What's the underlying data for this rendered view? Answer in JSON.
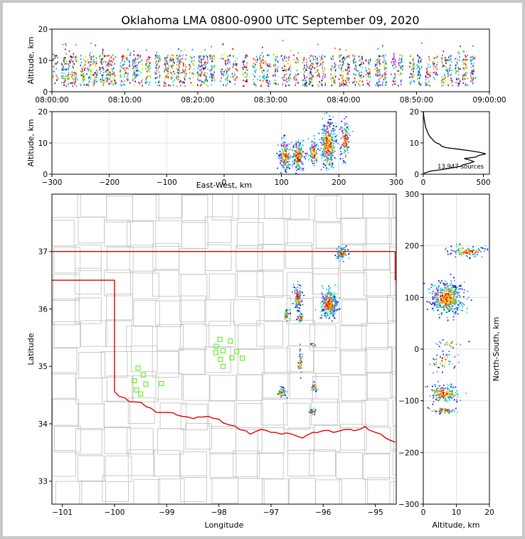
{
  "chart_data": [
    {
      "id": "altitude-vs-time",
      "type": "scatter",
      "title": "Oklahoma LMA 0800-0900 UTC September 09, 2020",
      "ylabel": "Altitude, km",
      "xlim": [
        "08:00:00",
        "09:00:00"
      ],
      "ylim": [
        0,
        20
      ],
      "xticks": [
        "08:00:00",
        "08:10:00",
        "08:20:00",
        "08:30:00",
        "08:40:00",
        "08:50:00",
        "09:00:00"
      ],
      "yticks": [
        "0",
        "10",
        "20"
      ],
      "column_minutes": [
        0.4,
        1.6,
        2.4,
        3.1,
        4.2,
        5.0,
        5.9,
        6.8,
        7.6,
        8.4,
        9.6,
        10.4,
        11.3,
        12.0,
        13.1,
        14.4,
        15.6,
        16.4,
        17.3,
        18.0,
        19.1,
        20.2,
        21.0,
        21.9,
        23.4,
        24.1,
        25.0,
        26.4,
        27.8,
        28.7,
        29.5,
        30.6,
        31.7,
        32.4,
        33.4,
        34.6,
        35.5,
        36.3,
        37.1,
        38.5,
        39.6,
        40.4,
        41.5,
        42.3,
        43.3,
        44.6,
        45.5,
        46.8,
        47.7,
        49.3,
        50.3,
        51.5,
        52.5,
        53.7,
        54.5,
        55.6,
        56.6,
        57.7
      ],
      "altitude_band_km": [
        2,
        12
      ]
    },
    {
      "id": "altitude-vs-east-west",
      "type": "scatter",
      "xlabel": "East-West, km",
      "ylabel": "Altitude, km",
      "xlim": [
        -300,
        300
      ],
      "ylim": [
        0,
        20
      ],
      "xticks": [
        "−300",
        "−200",
        "−100",
        "0",
        "100",
        "200",
        "300"
      ],
      "yticks": [
        "0",
        "10",
        "20"
      ],
      "clusters": [
        {
          "x": 105,
          "alt": 6,
          "sx": 5,
          "sa": 2.5,
          "n": 160
        },
        {
          "x": 128,
          "alt": 6,
          "sx": 5,
          "sa": 2.5,
          "n": 170
        },
        {
          "x": 155,
          "alt": 7,
          "sx": 4,
          "sa": 2,
          "n": 90
        },
        {
          "x": 180,
          "alt": 10,
          "sx": 7,
          "sa": 4,
          "n": 330
        },
        {
          "x": 210,
          "alt": 11,
          "sx": 4,
          "sa": 3,
          "n": 110
        }
      ]
    },
    {
      "id": "source-count-histogram",
      "type": "line",
      "xlim": [
        0,
        550
      ],
      "ylim": [
        0,
        20
      ],
      "xticks": [
        "0",
        "500"
      ],
      "yticks": [
        "0",
        "10",
        "20"
      ],
      "annotation": "13,947 sources",
      "altitude_km": [
        0.3,
        1,
        1.5,
        2,
        2.5,
        3,
        3.5,
        4,
        4.5,
        5,
        5.5,
        6,
        6.5,
        7,
        7.5,
        8,
        8.5,
        9,
        9.5,
        10,
        10.5,
        11,
        12,
        13,
        14,
        15,
        16,
        17,
        18,
        19,
        20
      ],
      "count": [
        5,
        60,
        160,
        230,
        310,
        330,
        380,
        420,
        390,
        340,
        440,
        460,
        520,
        470,
        390,
        290,
        190,
        150,
        140,
        110,
        90,
        80,
        55,
        40,
        30,
        20,
        15,
        10,
        6,
        3,
        1
      ]
    },
    {
      "id": "plan-view-map",
      "type": "scatter",
      "xlabel": "Longitude",
      "ylabel": "Latitude",
      "xlim": [
        -101.2,
        -94.6
      ],
      "ylim": [
        32.6,
        38.0
      ],
      "xticks": [
        "−101",
        "−100",
        "−99",
        "−98",
        "−97",
        "−96",
        "−95"
      ],
      "yticks": [
        "33",
        "34",
        "35",
        "36",
        "37"
      ],
      "clusters": [
        {
          "lon": -95.9,
          "lat": 36.1,
          "slon": 0.08,
          "slat": 0.12,
          "n": 320
        },
        {
          "lon": -96.5,
          "lat": 36.2,
          "slon": 0.04,
          "slat": 0.12,
          "n": 120
        },
        {
          "lon": -96.7,
          "lat": 35.9,
          "slon": 0.03,
          "slat": 0.05,
          "n": 40
        },
        {
          "lon": -96.45,
          "lat": 35.85,
          "slon": 0.03,
          "slat": 0.04,
          "n": 30
        },
        {
          "lon": -95.65,
          "lat": 36.98,
          "slon": 0.05,
          "slat": 0.05,
          "n": 90
        },
        {
          "lon": -96.45,
          "lat": 35.1,
          "slon": 0.02,
          "slat": 0.1,
          "n": 40
        },
        {
          "lon": -96.8,
          "lat": 34.55,
          "slon": 0.04,
          "slat": 0.05,
          "n": 60
        },
        {
          "lon": -96.18,
          "lat": 34.65,
          "slon": 0.03,
          "slat": 0.04,
          "n": 30
        },
        {
          "lon": -96.2,
          "lat": 34.22,
          "slon": 0.03,
          "slat": 0.03,
          "n": 35
        },
        {
          "lon": -96.2,
          "lat": 35.38,
          "slon": 0.03,
          "slat": 0.02,
          "n": 10
        }
      ],
      "stations": [
        {
          "lon": -99.55,
          "lat": 34.97
        },
        {
          "lon": -99.45,
          "lat": 34.85
        },
        {
          "lon": -99.62,
          "lat": 34.75
        },
        {
          "lon": -99.4,
          "lat": 34.69
        },
        {
          "lon": -99.58,
          "lat": 34.59
        },
        {
          "lon": -99.5,
          "lat": 34.52
        },
        {
          "lon": -99.1,
          "lat": 34.7
        },
        {
          "lon": -97.98,
          "lat": 35.47
        },
        {
          "lon": -98.05,
          "lat": 35.35
        },
        {
          "lon": -98.06,
          "lat": 35.24
        },
        {
          "lon": -97.92,
          "lat": 35.27
        },
        {
          "lon": -97.78,
          "lat": 35.44
        },
        {
          "lon": -97.66,
          "lat": 35.26
        },
        {
          "lon": -97.75,
          "lat": 35.15
        },
        {
          "lon": -97.55,
          "lat": 35.14
        },
        {
          "lon": -97.97,
          "lat": 35.12
        },
        {
          "lon": -97.92,
          "lat": 35.0
        }
      ]
    },
    {
      "id": "north-south-vs-altitude",
      "type": "scatter",
      "xlabel": "Altitude, km",
      "ylabel": "North-South, km",
      "xlim": [
        0,
        20
      ],
      "ylim": [
        -300,
        300
      ],
      "xticks": [
        "0",
        "10",
        "20"
      ],
      "yticks": [
        "−300",
        "−200",
        "−100",
        "0",
        "100",
        "200",
        "300"
      ],
      "clusters": [
        {
          "alt": 7,
          "ns": 100,
          "sa": 2.5,
          "sn": 15,
          "n": 450
        },
        {
          "alt": 13,
          "ns": 190,
          "sa": 3,
          "sn": 5,
          "n": 110
        },
        {
          "alt": 6,
          "ns": -85,
          "sa": 2.5,
          "sn": 8,
          "n": 170
        },
        {
          "alt": 6,
          "ns": -118,
          "sa": 2,
          "sn": 3,
          "n": 60
        },
        {
          "alt": 6,
          "ns": -20,
          "sa": 2,
          "sn": 10,
          "n": 50
        },
        {
          "alt": 7,
          "ns": 12,
          "sa": 2,
          "sn": 3,
          "n": 20
        }
      ]
    }
  ]
}
